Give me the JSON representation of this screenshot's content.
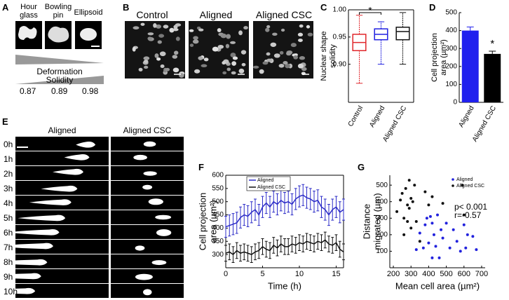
{
  "panel_labels": [
    "A",
    "B",
    "C",
    "D",
    "E",
    "F",
    "G"
  ],
  "panel_a": {
    "shapes": [
      "Hour glass",
      "Bowling pin",
      "Ellipsoid"
    ],
    "deformation": "Deformation",
    "solidity": "Solidity",
    "solidity_values": [
      "0.87",
      "0.89",
      "0.98"
    ]
  },
  "panel_b": {
    "conditions": [
      "Control",
      "Aligned",
      "Aligned CSC"
    ]
  },
  "panel_e": {
    "columns": [
      "Aligned",
      "Aligned CSC"
    ],
    "times": [
      "0h",
      "1h",
      "2h",
      "3h",
      "4h",
      "5h",
      "6h",
      "7h",
      "8h",
      "9h",
      "10h"
    ]
  },
  "chart_data": [
    {
      "type": "box",
      "ylabel": [
        "Nuclear shape",
        "solidity"
      ],
      "categories": [
        "Control",
        "Aligned",
        "Aligned CSC"
      ],
      "colors": [
        "#e0262b",
        "#2020e0",
        "#111111"
      ],
      "boxes": [
        {
          "min": 0.865,
          "q1": 0.925,
          "median": 0.94,
          "q3": 0.955,
          "max": 0.99
        },
        {
          "min": 0.9,
          "q1": 0.945,
          "median": 0.955,
          "q3": 0.965,
          "max": 0.978
        },
        {
          "min": 0.9,
          "q1": 0.945,
          "median": 0.96,
          "q3": 0.968,
          "max": 0.995
        }
      ],
      "ylim": [
        0.83,
        1.0
      ],
      "yticks": [
        {
          "value": 0.9,
          "label": "0.90"
        },
        {
          "value": 0.95,
          "label": "0.95"
        },
        {
          "value": 1.0,
          "label": "1.00"
        }
      ],
      "annotation": "*"
    },
    {
      "type": "bar",
      "ylabel": [
        "Cell projection",
        "area (µm²)"
      ],
      "categories": [
        "Aligned",
        "Aligned CSC"
      ],
      "values": [
        400,
        270
      ],
      "errors": [
        20,
        15
      ],
      "colors": [
        "#2020ee",
        "#000000"
      ],
      "ylim": [
        0,
        500
      ],
      "yticks": [
        0,
        100,
        200,
        300,
        400,
        500
      ],
      "annotation": "*"
    },
    {
      "type": "line",
      "xlabel": "Time (h)",
      "ylabel": [
        "Cell projection",
        "area (µm²)"
      ],
      "x": [
        0,
        0.5,
        1,
        1.5,
        2,
        2.5,
        3,
        3.5,
        4,
        4.5,
        5,
        5.5,
        6,
        6.5,
        7,
        7.5,
        8,
        8.5,
        9,
        9.5,
        10,
        10.5,
        11,
        11.5,
        12,
        12.5,
        13,
        13.5,
        14,
        14.5,
        15,
        15.5,
        16
      ],
      "series": [
        {
          "name": "Aligned",
          "color": "#2c2cc8",
          "values": [
            405,
            410,
            415,
            420,
            440,
            450,
            445,
            460,
            470,
            450,
            480,
            495,
            480,
            500,
            490,
            505,
            495,
            500,
            490,
            510,
            520,
            525,
            515,
            510,
            500,
            505,
            480,
            470,
            450,
            470,
            480,
            460,
            470
          ],
          "errors": [
            40,
            40,
            40,
            40,
            40,
            40,
            40,
            40,
            40,
            40,
            40,
            40,
            40,
            40,
            40,
            40,
            40,
            40,
            40,
            40,
            40,
            40,
            40,
            40,
            40,
            40,
            40,
            40,
            40,
            40,
            40,
            40,
            40
          ]
        },
        {
          "name": "Aligned CSC",
          "color": "#111111",
          "values": [
            305,
            310,
            300,
            315,
            305,
            310,
            305,
            300,
            310,
            315,
            330,
            320,
            315,
            335,
            325,
            340,
            330,
            330,
            340,
            335,
            345,
            340,
            350,
            345,
            340,
            350,
            345,
            355,
            340,
            335,
            345,
            320,
            310
          ],
          "errors": [
            30,
            30,
            30,
            30,
            30,
            30,
            30,
            30,
            30,
            30,
            30,
            30,
            30,
            30,
            30,
            30,
            30,
            30,
            30,
            30,
            30,
            30,
            30,
            30,
            30,
            30,
            30,
            30,
            30,
            30,
            30,
            30,
            30
          ]
        }
      ],
      "xlim": [
        0,
        16
      ],
      "xticks": [
        0,
        5,
        10,
        15
      ],
      "ylim": [
        250,
        600
      ],
      "yticks": [
        300,
        350,
        400,
        450,
        500,
        550,
        600
      ],
      "legend": "upper left"
    },
    {
      "type": "scatter",
      "xlabel": "Mean cell area (µm²)",
      "ylabel": [
        "Distance",
        "migrated (µm)"
      ],
      "series": [
        {
          "name": "Aligned",
          "color": "#2222dd",
          "x": [
            330,
            350,
            380,
            390,
            400,
            410,
            420,
            430,
            440,
            450,
            460,
            470,
            480,
            500,
            520,
            540,
            560,
            580,
            600,
            610,
            620,
            650,
            670,
            370,
            420
          ],
          "values": [
            110,
            210,
            260,
            300,
            150,
            310,
            270,
            200,
            130,
            320,
            60,
            230,
            180,
            270,
            120,
            230,
            160,
            100,
            260,
            120,
            200,
            190,
            110,
            120,
            60
          ]
        },
        {
          "name": "Aligned CSC",
          "color": "#111111",
          "x": [
            220,
            240,
            250,
            260,
            270,
            280,
            290,
            300,
            310,
            320,
            300,
            330,
            350,
            260,
            280,
            290,
            380,
            400,
            480,
            590,
            600,
            420
          ],
          "values": [
            340,
            410,
            450,
            300,
            480,
            380,
            360,
            420,
            400,
            500,
            240,
            280,
            160,
            200,
            280,
            530,
            460,
            380,
            390,
            500,
            320,
            430
          ]
        }
      ],
      "xlim": [
        180,
        720
      ],
      "xticks": [
        200,
        300,
        400,
        500,
        600,
        700
      ],
      "ylim": [
        0,
        560
      ],
      "yticks": [
        100,
        200,
        300,
        400,
        500
      ],
      "legend": "upper right",
      "annotations": [
        "p< 0.001",
        "r=-0.57"
      ]
    }
  ]
}
